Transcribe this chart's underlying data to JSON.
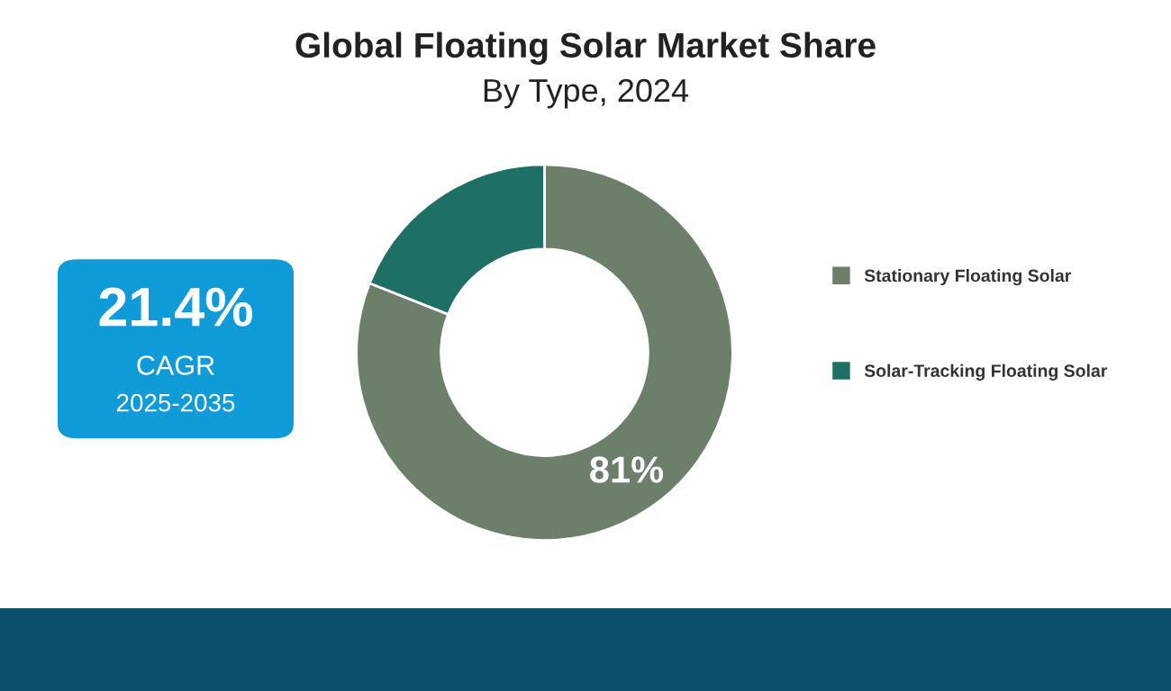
{
  "chart_data": [
    {
      "type": "donut",
      "title": "Global Floating Solar Market Share",
      "subtitle": "By Type, 2024",
      "categories": [
        "Stationary Floating Solar",
        "Solar-Tracking Floating Solar"
      ],
      "values": [
        81,
        19
      ],
      "colors": [
        "#6b7f6a",
        "#1e6f64"
      ],
      "value_labels": [
        "81%",
        null
      ],
      "legend": "right"
    },
    {
      "type": "other",
      "annotations": [
        "21.4%",
        "CAGR",
        "2025-2035"
      ]
    }
  ]
}
